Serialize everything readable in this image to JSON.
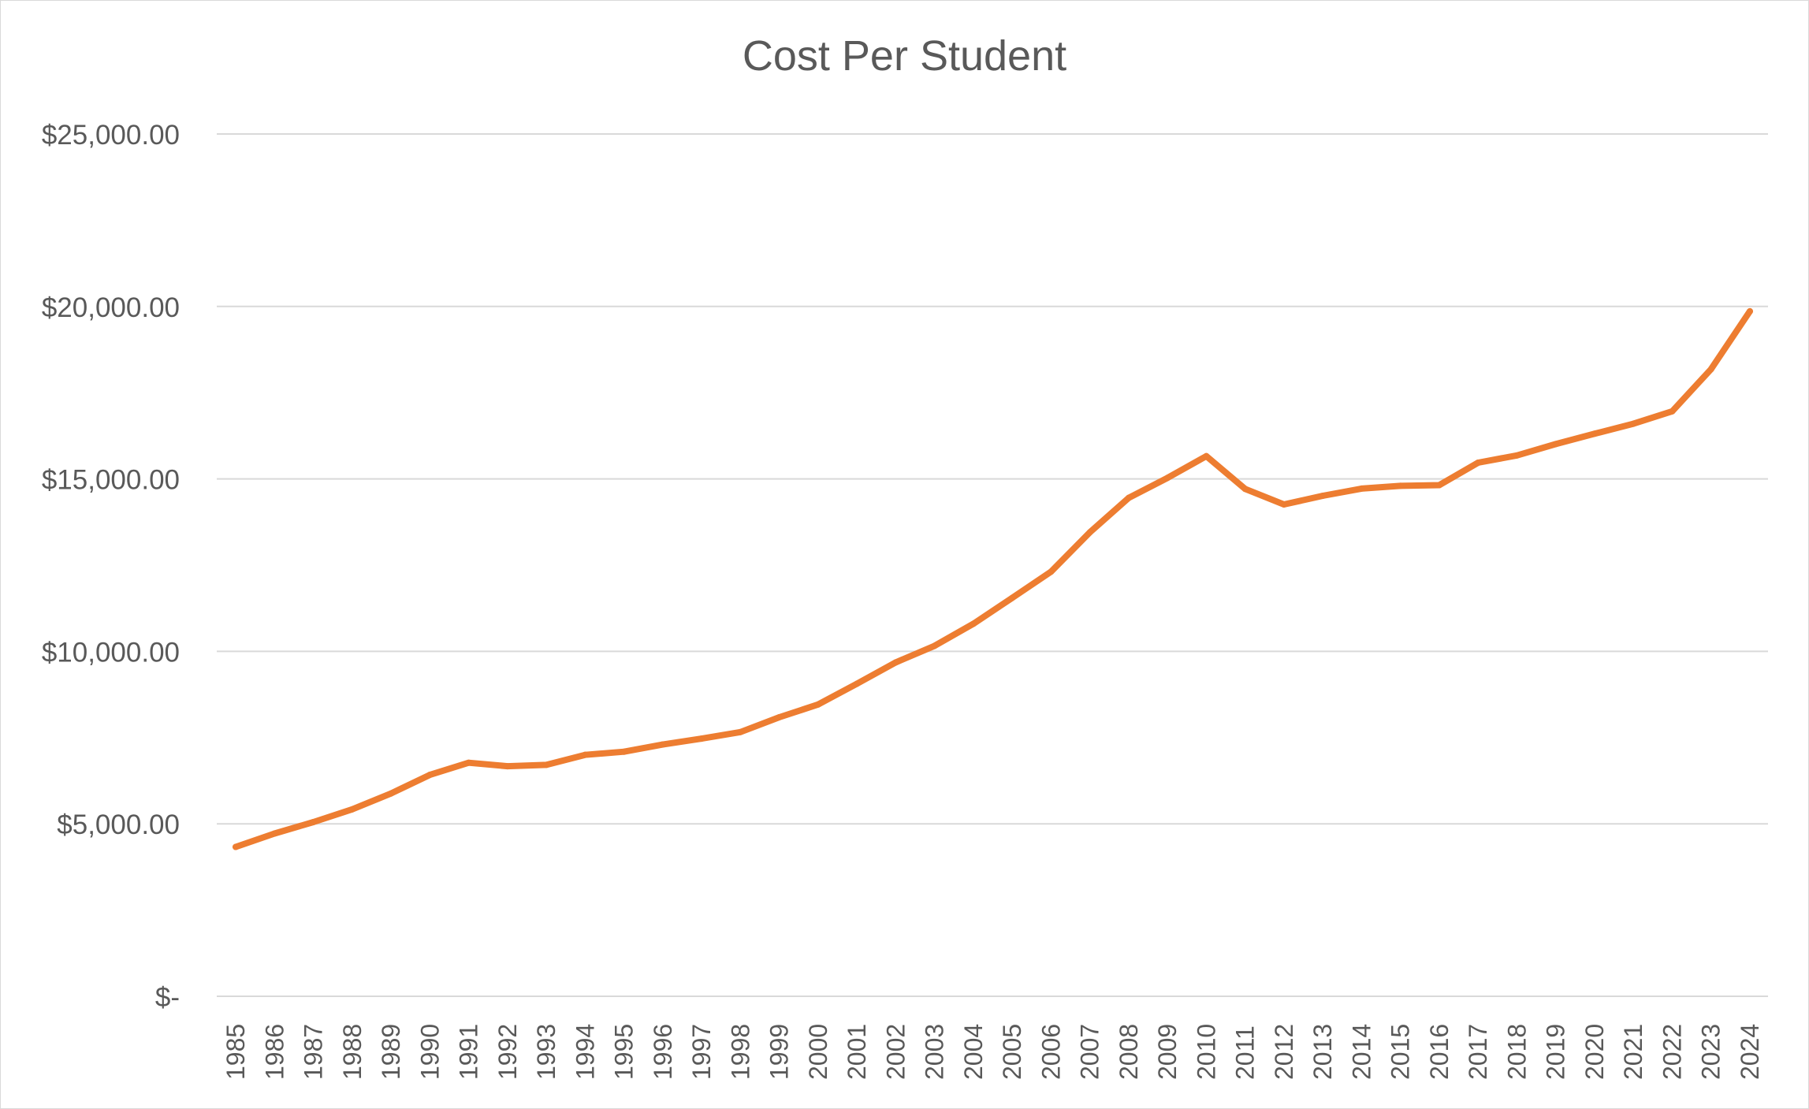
{
  "chart_data": {
    "type": "line",
    "title": "Cost Per Student",
    "xlabel": "",
    "ylabel": "",
    "ylim": [
      0,
      25000
    ],
    "y_ticks": [
      0,
      5000,
      10000,
      15000,
      20000,
      25000
    ],
    "y_tick_labels": [
      "$-",
      "$5,000.00",
      "$10,000.00",
      "$15,000.00",
      "$20,000.00",
      "$25,000.00"
    ],
    "grid": true,
    "legend": "none",
    "categories": [
      "1985",
      "1986",
      "1987",
      "1988",
      "1989",
      "1990",
      "1991",
      "1992",
      "1993",
      "1994",
      "1995",
      "1996",
      "1997",
      "1998",
      "1999",
      "2000",
      "2001",
      "2002",
      "2003",
      "2004",
      "2005",
      "2006",
      "2007",
      "2008",
      "2009",
      "2010",
      "2011",
      "2012",
      "2013",
      "2014",
      "2015",
      "2016",
      "2017",
      "2018",
      "2019",
      "2020",
      "2021",
      "2022",
      "2023",
      "2024"
    ],
    "series": [
      {
        "values": [
          4330,
          4720,
          5050,
          5420,
          5880,
          6420,
          6770,
          6670,
          6710,
          7000,
          7090,
          7300,
          7470,
          7660,
          8090,
          8460,
          9060,
          9680,
          10160,
          10800,
          11550,
          12310,
          13450,
          14450,
          15030,
          15660,
          14710,
          14260,
          14510,
          14720,
          14800,
          14820,
          15470,
          15680,
          16010,
          16310,
          16600,
          16960,
          18180,
          19860
        ],
        "color": "#ED7D31"
      }
    ]
  }
}
